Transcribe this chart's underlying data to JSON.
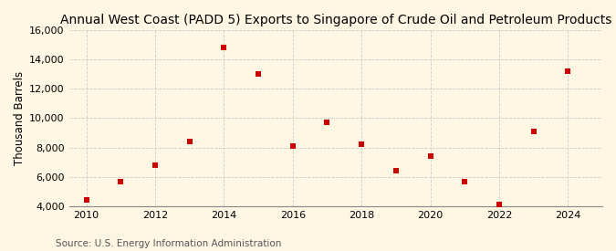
{
  "title": "Annual West Coast (PADD 5) Exports to Singapore of Crude Oil and Petroleum Products",
  "ylabel": "Thousand Barrels",
  "source": "Source: U.S. Energy Information Administration",
  "years": [
    2010,
    2011,
    2012,
    2013,
    2014,
    2015,
    2016,
    2017,
    2018,
    2019,
    2020,
    2021,
    2022,
    2023,
    2024
  ],
  "values": [
    4400,
    5700,
    6800,
    8400,
    14800,
    13000,
    8100,
    9700,
    8200,
    6400,
    7400,
    5700,
    4100,
    9100,
    13200
  ],
  "marker_color": "#cc0000",
  "marker_size": 5,
  "background_color": "#fdf6e3",
  "grid_color": "#cccccc",
  "ylim": [
    4000,
    16000
  ],
  "yticks": [
    4000,
    6000,
    8000,
    10000,
    12000,
    14000,
    16000
  ],
  "xlim": [
    2009.5,
    2025.0
  ],
  "xticks": [
    2010,
    2012,
    2014,
    2016,
    2018,
    2020,
    2022,
    2024
  ],
  "title_fontsize": 10,
  "label_fontsize": 8.5,
  "tick_fontsize": 8,
  "source_fontsize": 7.5
}
